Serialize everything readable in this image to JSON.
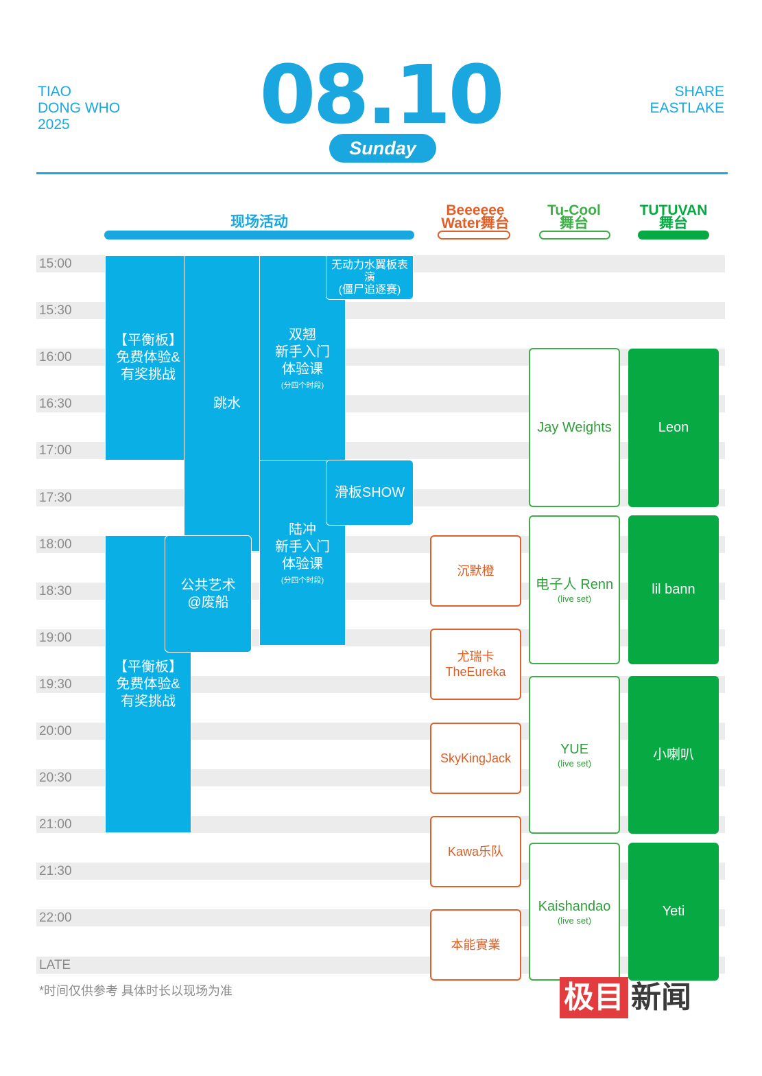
{
  "header": {
    "brand_left": [
      "TIAO",
      "DONG WHO",
      "2025"
    ],
    "brand_right": [
      "SHARE",
      "EASTLAKE"
    ],
    "date": "08.10",
    "day": "Sunday"
  },
  "columns": {
    "activities": "现场活动",
    "stage1": [
      "Beeeeee",
      "Water舞台"
    ],
    "stage2": [
      "Tu-Cool",
      "舞台"
    ],
    "stage3": [
      "TUTUVAN",
      "舞台"
    ]
  },
  "times": [
    "15:00",
    "15:30",
    "16:00",
    "16:30",
    "17:00",
    "17:30",
    "18:00",
    "18:30",
    "19:00",
    "19:30",
    "20:00",
    "20:30",
    "21:00",
    "21:30",
    "22:00",
    "LATE"
  ],
  "activities": {
    "balance_1": [
      "【平衡板】",
      "免费体验&",
      "有奖挑战"
    ],
    "diving": "跳水",
    "wing_course": [
      "双翘",
      "新手入门",
      "体验课"
    ],
    "wing_note": "(分四个时段)",
    "hydrofoil": [
      "无动力水翼板表演",
      "(僵尸追逐赛)"
    ],
    "skate_show": "滑板SHOW",
    "land_course": [
      "陆冲",
      "新手入门",
      "体验课"
    ],
    "land_note": "(分四个时段)",
    "public_art": [
      "公共艺术",
      "@废船"
    ],
    "balance_2": [
      "【平衡板】",
      "免费体验&",
      "有奖挑战"
    ]
  },
  "stage1_acts": [
    {
      "name": [
        "沉默橙"
      ]
    },
    {
      "name": [
        "尤瑞卡",
        "TheEureka"
      ]
    },
    {
      "name": [
        "SkyKingJack"
      ]
    },
    {
      "name": [
        "Kawa乐队"
      ]
    },
    {
      "name": [
        "本能實業"
      ]
    }
  ],
  "stage2_acts": [
    {
      "name": "Jay Weights",
      "note": ""
    },
    {
      "name": "电子人 Renn",
      "note": "(live set)"
    },
    {
      "name": "YUE",
      "note": "(live set)"
    },
    {
      "name": "Kaishandao",
      "note": "(live set)"
    }
  ],
  "stage3_acts": [
    {
      "name": "Leon"
    },
    {
      "name": "lil bann"
    },
    {
      "name": "小喇叭"
    },
    {
      "name": "Yeti"
    }
  ],
  "footer": {
    "note": "*时间仅供参考 具体时长以现场为准",
    "watermark_red": "极目",
    "watermark_text": "新闻"
  },
  "colors": {
    "blue": "#0aafe6",
    "orange": "#e0602a",
    "green": "#06a942",
    "band": "#ececec"
  }
}
